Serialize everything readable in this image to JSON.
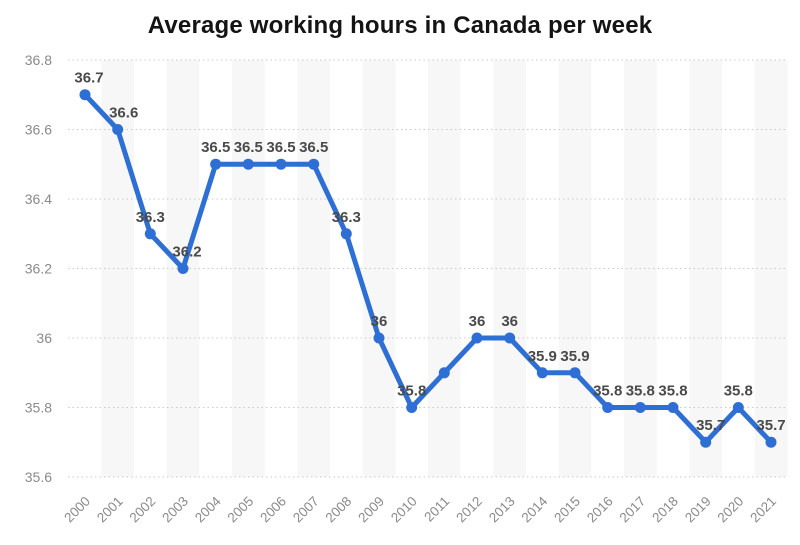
{
  "chart_data": {
    "type": "line",
    "title": "Average working hours in Canada per week",
    "x": [
      "2000",
      "2001",
      "2002",
      "2003",
      "2004",
      "2005",
      "2006",
      "2007",
      "2008",
      "2009",
      "2010",
      "2011",
      "2012",
      "2013",
      "2014",
      "2015",
      "2016",
      "2017",
      "2018",
      "2019",
      "2020",
      "2021"
    ],
    "values": [
      36.7,
      36.6,
      36.3,
      36.2,
      36.5,
      36.5,
      36.5,
      36.5,
      36.3,
      36.0,
      35.8,
      35.9,
      36.0,
      36.0,
      35.9,
      35.9,
      35.8,
      35.8,
      35.8,
      35.7,
      35.8,
      35.7
    ],
    "point_labels": [
      "36.7",
      "36.6",
      "36.3",
      "36.2",
      "36.5",
      "36.5",
      "36.5",
      "36.5",
      "36.3",
      "36",
      "35.8",
      null,
      "36",
      "36",
      "35.9",
      "35.9",
      "35.8",
      "35.8",
      "35.8",
      "35.7",
      "35.8",
      "35.7"
    ],
    "xlabel": "",
    "ylabel": "",
    "ylim": [
      35.6,
      36.8
    ],
    "yticks": [
      "36.8",
      "36.6",
      "36.4",
      "36.2",
      "36",
      "35.8",
      "35.6"
    ],
    "ytick_values": [
      36.8,
      36.6,
      36.4,
      36.2,
      36.0,
      35.8,
      35.6
    ],
    "grid": "horizontal-dotted",
    "legend": "none",
    "background_bands": "alternating vertical stripes centered on odd years",
    "colors": {
      "line": "#2e6fd6",
      "point": "#2e6fd6",
      "band": "#f7f7f7",
      "grid": "#c9c9c9",
      "axis_text": "#8a8a8a",
      "data_label": "#4a4a4a",
      "title": "#141414"
    }
  }
}
